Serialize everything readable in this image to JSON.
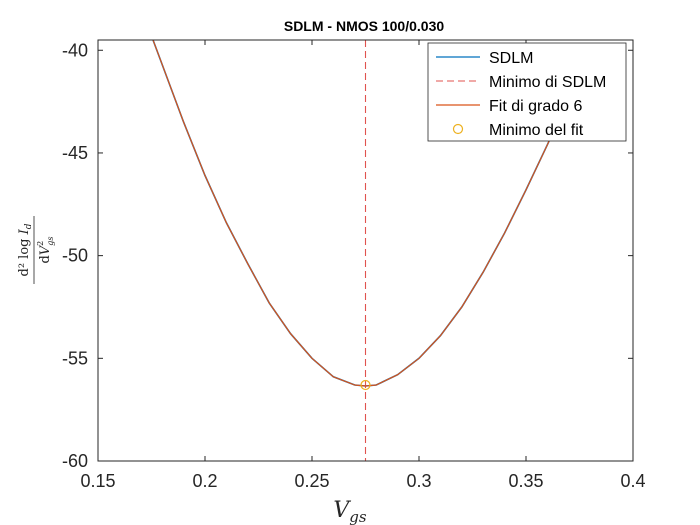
{
  "chart_data": {
    "type": "line",
    "title": "SDLM - NMOS 100/0.030",
    "xlabel": "V_gs",
    "ylabel": "d² log I_d / dV_gs²",
    "xlim": [
      0.15,
      0.4
    ],
    "ylim": [
      -60,
      -39.5
    ],
    "xticks": [
      0.15,
      0.2,
      0.25,
      0.3,
      0.35,
      0.4
    ],
    "xtick_labels": [
      "0.15",
      "0.2",
      "0.25",
      "0.3",
      "0.35",
      "0.4"
    ],
    "yticks": [
      -60,
      -55,
      -50,
      -45,
      -40
    ],
    "ytick_labels": [
      "-60",
      "-55",
      "-50",
      "-45",
      "-40"
    ],
    "grid": false,
    "legend_position": "top-right",
    "series": [
      {
        "name": "SDLM",
        "color": "#0072BD",
        "style": "line",
        "x": [
          0.175,
          0.18,
          0.19,
          0.2,
          0.21,
          0.22,
          0.23,
          0.24,
          0.25,
          0.26,
          0.27,
          0.275,
          0.28,
          0.29,
          0.3,
          0.31,
          0.32,
          0.33,
          0.34,
          0.35,
          0.36,
          0.37,
          0.375
        ],
        "y": [
          -39.3,
          -40.7,
          -43.5,
          -46.1,
          -48.4,
          -50.4,
          -52.3,
          -53.8,
          -55.0,
          -55.9,
          -56.3,
          -56.35,
          -56.3,
          -55.8,
          -55.0,
          -53.9,
          -52.5,
          -50.8,
          -48.9,
          -46.8,
          -44.6,
          -42.3,
          -41.2
        ]
      },
      {
        "name": "Minimo di SDLM",
        "color": "#D95319",
        "style": "dashed-vertical",
        "x": 0.275
      },
      {
        "name": "Fit di grado 6",
        "color": "#D95319",
        "style": "line",
        "x": [
          0.175,
          0.18,
          0.19,
          0.2,
          0.21,
          0.22,
          0.23,
          0.24,
          0.25,
          0.26,
          0.27,
          0.275,
          0.28,
          0.29,
          0.3,
          0.31,
          0.32,
          0.33,
          0.34,
          0.35,
          0.36,
          0.37,
          0.375
        ],
        "y": [
          -39.3,
          -40.7,
          -43.5,
          -46.1,
          -48.4,
          -50.4,
          -52.3,
          -53.8,
          -55.0,
          -55.9,
          -56.3,
          -56.35,
          -56.3,
          -55.8,
          -55.0,
          -53.9,
          -52.5,
          -50.8,
          -48.9,
          -46.8,
          -44.6,
          -42.3,
          -41.2
        ]
      },
      {
        "name": "Minimo del fit",
        "color": "#EDB120",
        "style": "marker-circle",
        "x": 0.275,
        "y": -56.3
      }
    ]
  }
}
